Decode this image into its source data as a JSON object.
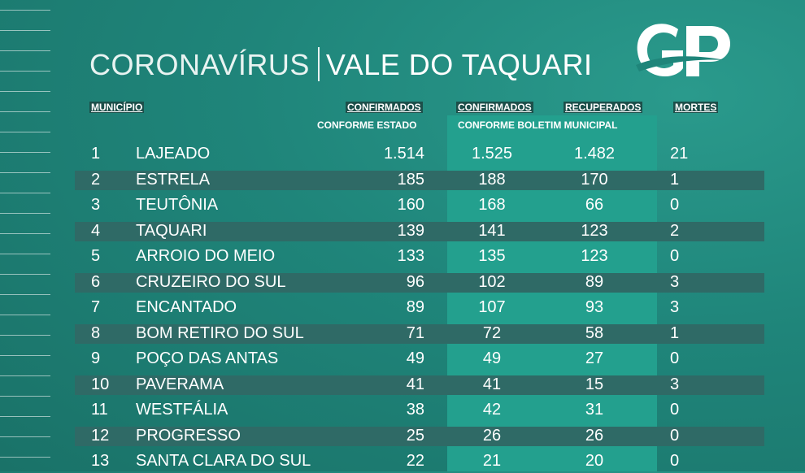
{
  "title": {
    "part1": "CORONAVÍRUS",
    "part2": "VALE DO TAQUARI"
  },
  "headers": {
    "municipio": "MUNICÍPIO",
    "confirmados_estado": "CONFIRMADOS",
    "conforme_estado": "CONFORME ESTADO",
    "confirmados_boletim": "CONFIRMADOS",
    "recuperados": "RECUPERADOS",
    "conforme_boletim": "CONFORME BOLETIM MUNICIPAL",
    "mortes": "MORTES"
  },
  "rows": [
    {
      "n": "1",
      "name": "LAJEADO",
      "ce": "1.514",
      "cb": "1.525",
      "rec": "1.482",
      "mor": "21"
    },
    {
      "n": "2",
      "name": "ESTRELA",
      "ce": "185",
      "cb": "188",
      "rec": "170",
      "mor": "1"
    },
    {
      "n": "3",
      "name": "TEUTÔNIA",
      "ce": "160",
      "cb": "168",
      "rec": "66",
      "mor": "0"
    },
    {
      "n": "4",
      "name": "TAQUARI",
      "ce": "139",
      "cb": "141",
      "rec": "123",
      "mor": "2"
    },
    {
      "n": "5",
      "name": "ARROIO DO MEIO",
      "ce": "133",
      "cb": "135",
      "rec": "123",
      "mor": "0"
    },
    {
      "n": "6",
      "name": "CRUZEIRO DO SUL",
      "ce": "96",
      "cb": "102",
      "rec": "89",
      "mor": "3"
    },
    {
      "n": "7",
      "name": "ENCANTADO",
      "ce": "89",
      "cb": "107",
      "rec": "93",
      "mor": "3"
    },
    {
      "n": "8",
      "name": "BOM RETIRO DO SUL",
      "ce": "71",
      "cb": "72",
      "rec": "58",
      "mor": "1"
    },
    {
      "n": "9",
      "name": "POÇO DAS ANTAS",
      "ce": "49",
      "cb": "49",
      "rec": "27",
      "mor": "0"
    },
    {
      "n": "10",
      "name": "PAVERAMA",
      "ce": "41",
      "cb": "41",
      "rec": "15",
      "mor": "3"
    },
    {
      "n": "11",
      "name": "WESTFÁLIA",
      "ce": "38",
      "cb": "42",
      "rec": "31",
      "mor": "0"
    },
    {
      "n": "12",
      "name": "PROGRESSO",
      "ce": "25",
      "cb": "26",
      "rec": "26",
      "mor": "0"
    },
    {
      "n": "13",
      "name": "SANTA CLARA DO SUL",
      "ce": "22",
      "cb": "21",
      "rec": "20",
      "mor": "0"
    }
  ],
  "logo": "GP"
}
